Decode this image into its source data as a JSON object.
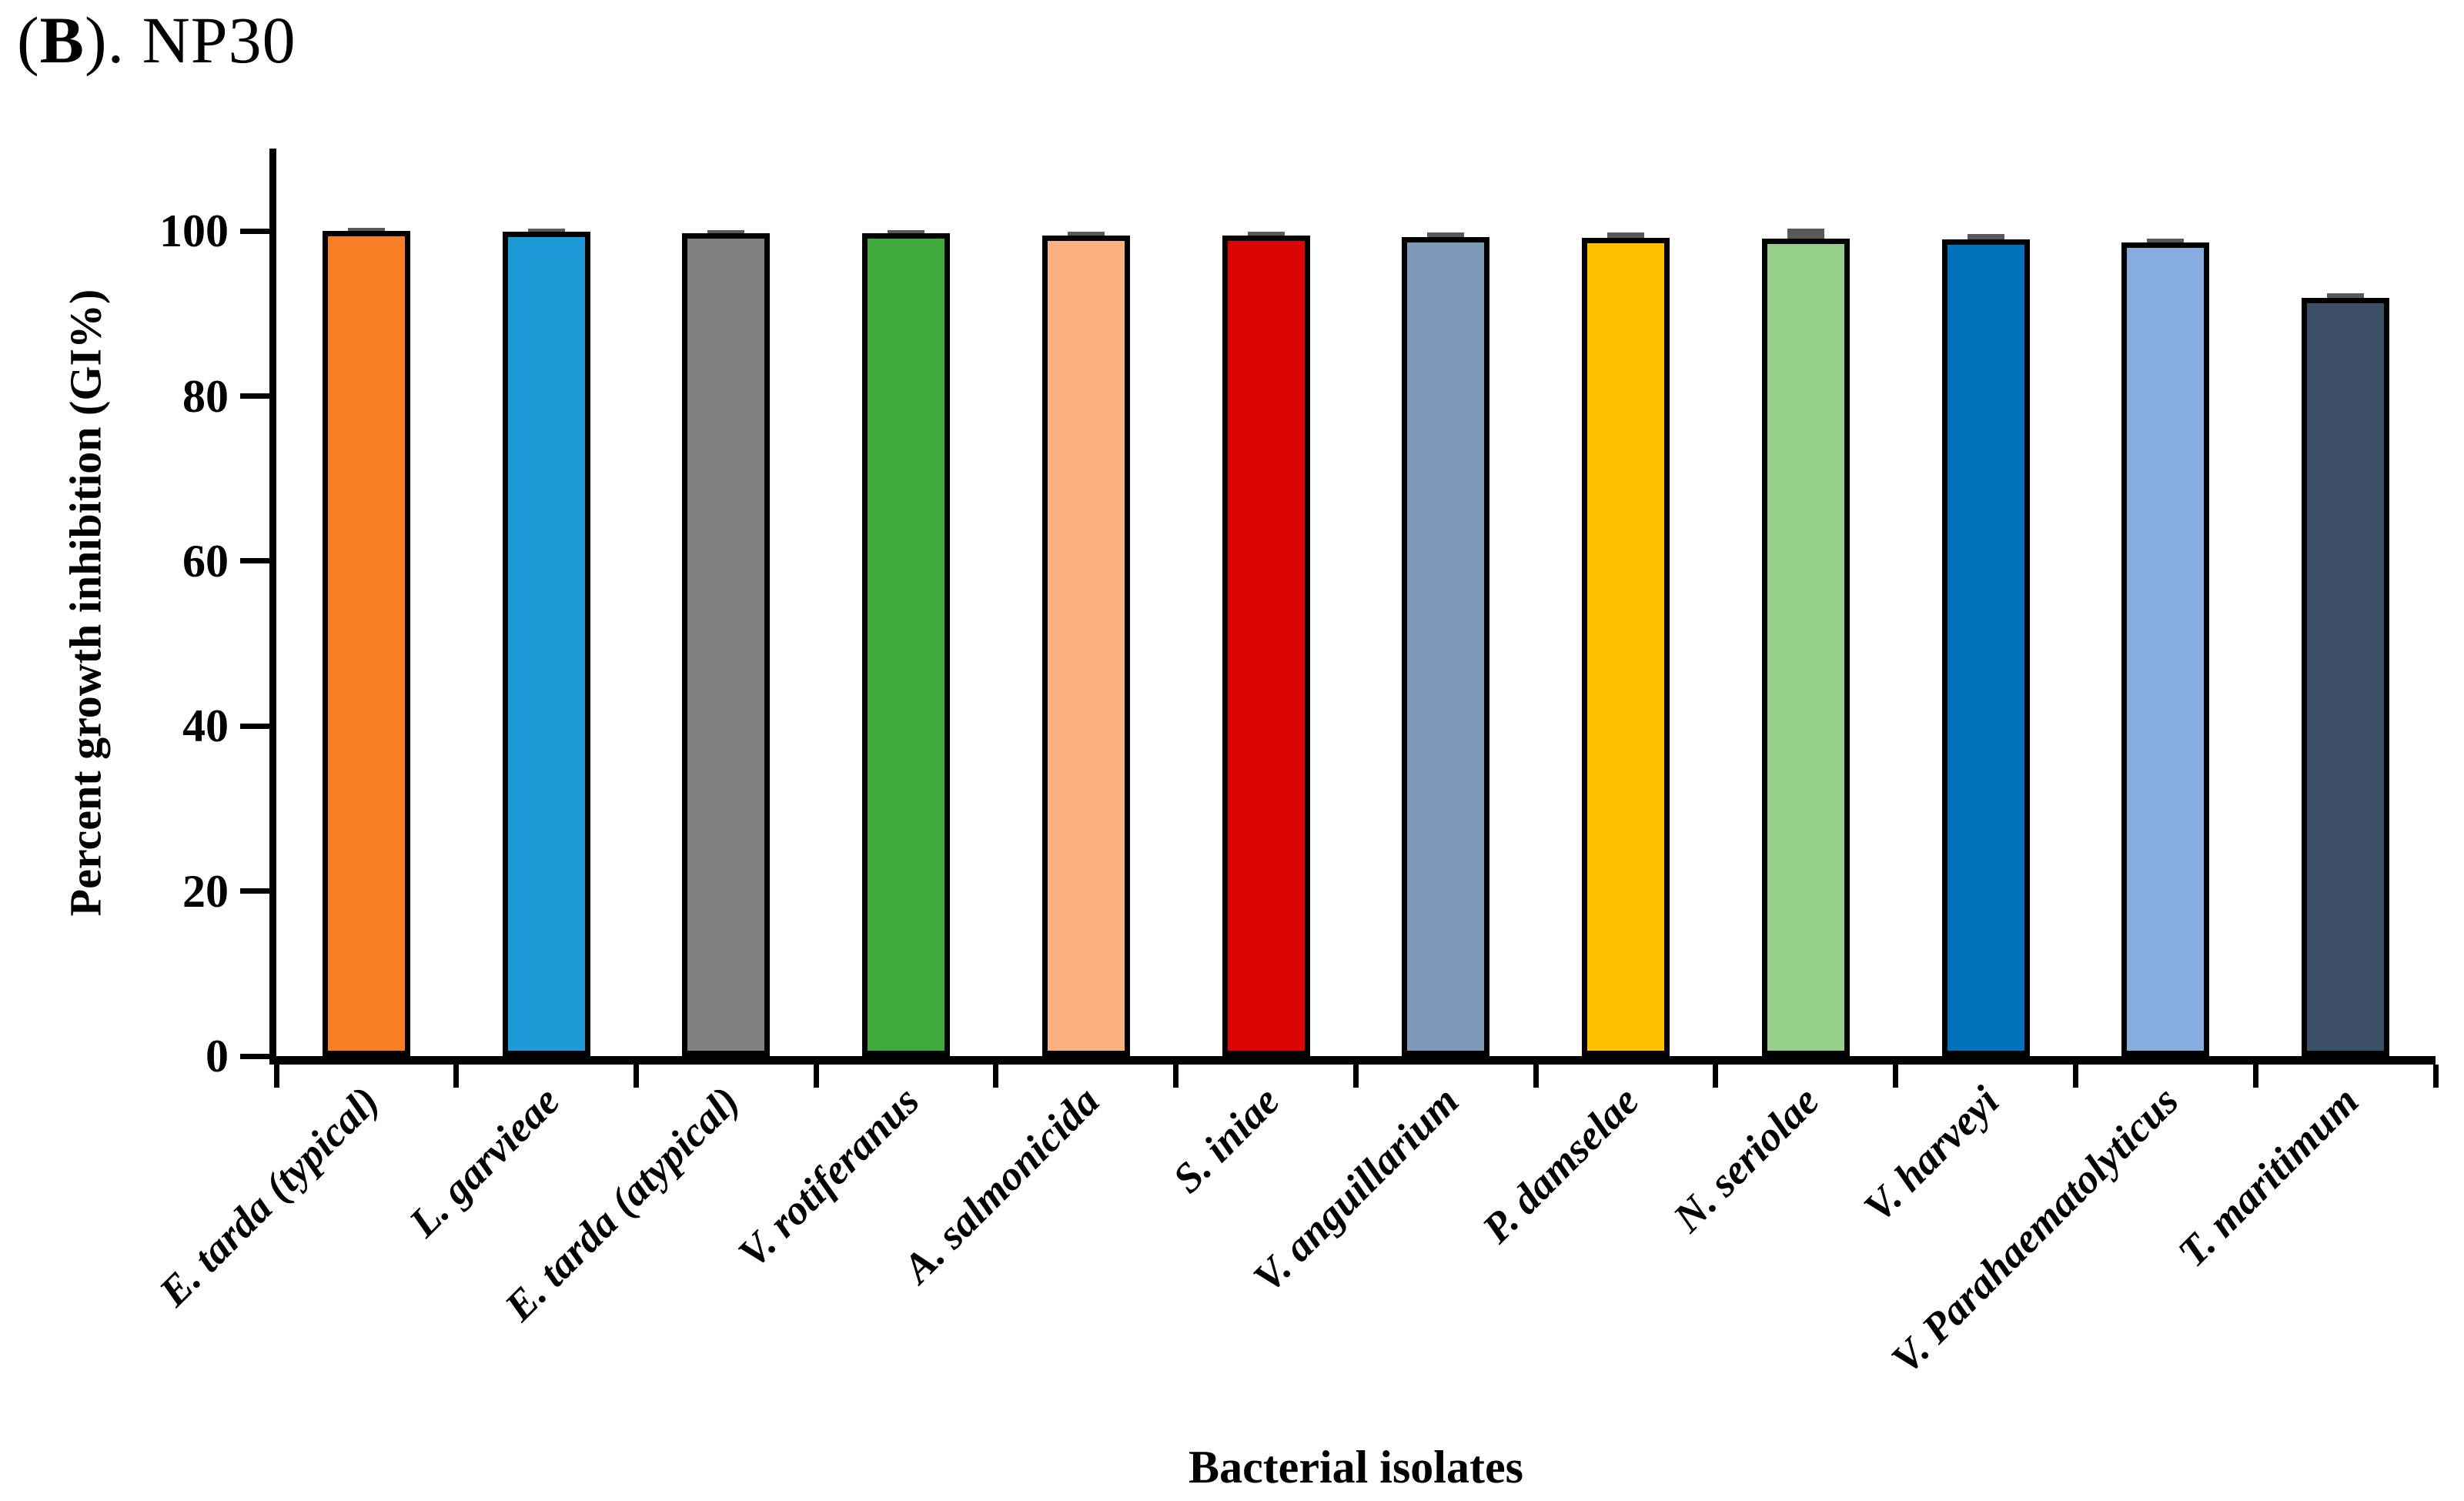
{
  "title": {
    "prefix": "(",
    "bold": "B",
    "suffix": "). NP30"
  },
  "chart_data": {
    "type": "bar",
    "title": "(B). NP30",
    "xlabel": "Bacterial isolates",
    "ylabel": "Percent growth inhibition (GI%)",
    "ylim": [
      0,
      110
    ],
    "yticks": [
      0,
      20,
      40,
      60,
      80,
      100
    ],
    "grid": false,
    "legend": "none",
    "categories": [
      "E. tarda (typical)",
      "L. garvieae",
      "E. tarda (atypical)",
      "V. rotiferanus",
      "A. salmonicida",
      "S. iniae",
      "V. anguillarium",
      "P. damselae",
      "N. seriolae",
      "V. harveyi",
      "V. Parahaematolyticus",
      "T. maritimum"
    ],
    "values": [
      100,
      99.9,
      99.7,
      99.7,
      99.5,
      99.5,
      99.3,
      99.2,
      99.1,
      99.0,
      98.6,
      91.9
    ],
    "errors": [
      0.4,
      0.4,
      0.4,
      0.4,
      0.4,
      0.4,
      0.5,
      0.6,
      1.2,
      0.6,
      0.5,
      0.6
    ],
    "bar_colors": [
      "#F97D25",
      "#1E9BD7",
      "#808080",
      "#3FA93C",
      "#FBB07F",
      "#DD0404",
      "#7E99B7",
      "#FFC000",
      "#95CF8A",
      "#0072BB",
      "#86ACE0",
      "#3C4F66"
    ],
    "bar_border_color": "#000000",
    "error_cap_color": "#595959"
  }
}
